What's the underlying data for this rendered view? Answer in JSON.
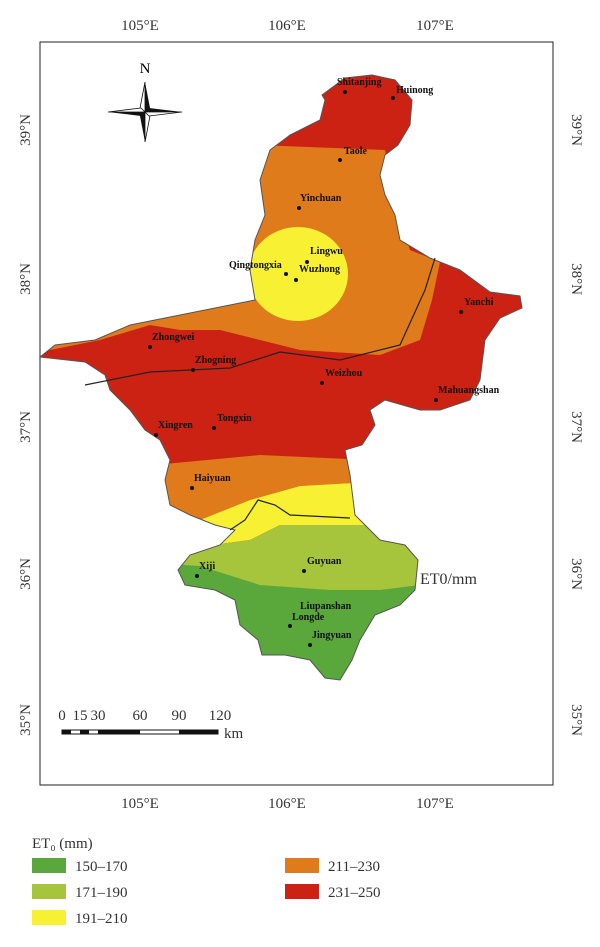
{
  "map": {
    "lon_ticks": [
      "105°E",
      "106°E",
      "107°E"
    ],
    "lat_ticks": [
      "39°N",
      "38°N",
      "37°N",
      "36°N",
      "35°N"
    ],
    "north": "N",
    "stations": [
      "Shitanjing",
      "Huinong",
      "Taole",
      "Yinchuan",
      "Lingwu",
      "Qingtongxia",
      "Wuzhong",
      "Yanchi",
      "Zhongwei",
      "Zhogning",
      "Weizhou",
      "Mahuangshan",
      "Xingren",
      "Tongxin",
      "Haiyuan",
      "Xiji",
      "Guyuan",
      "Liupanshan",
      "Longde",
      "Jingyuan"
    ],
    "zone_label": "ET0/mm",
    "scale_bar": {
      "labels": [
        "0",
        "15",
        "30",
        "60",
        "90",
        "120"
      ],
      "unit": "km"
    }
  },
  "legend": {
    "title": "ET₀ (mm)",
    "items": [
      {
        "label": "150–170",
        "color": "#5aa83c"
      },
      {
        "label": "171–190",
        "color": "#a6c43c"
      },
      {
        "label": "191–210",
        "color": "#f8f032"
      },
      {
        "label": "211–230",
        "color": "#df7b1b"
      },
      {
        "label": "231–250",
        "color": "#cb2214"
      }
    ]
  }
}
